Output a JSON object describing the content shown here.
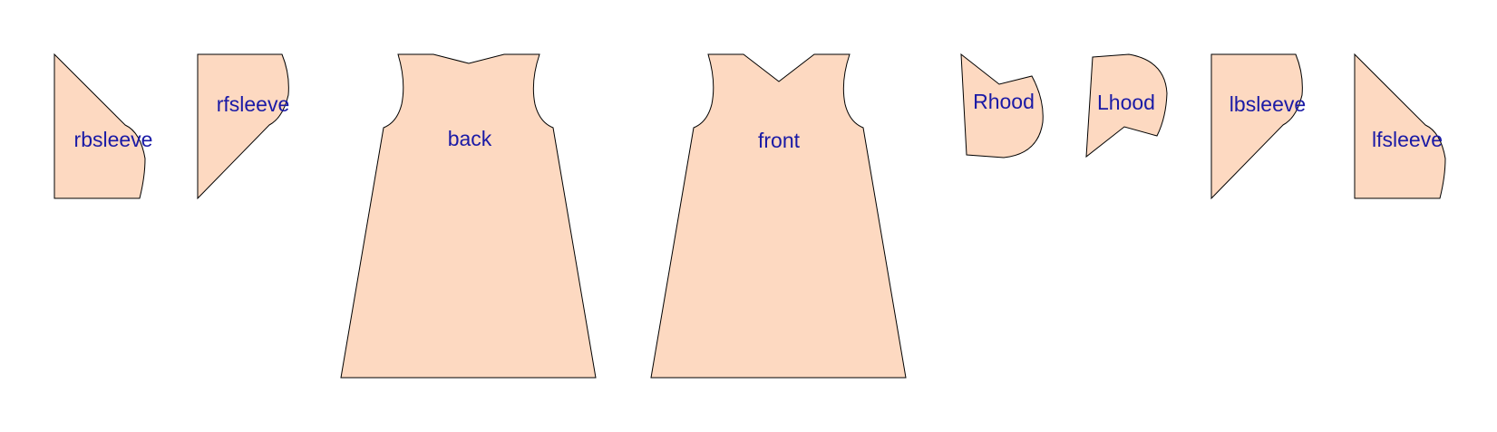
{
  "diagram": {
    "fill_color": "#fdd9c1",
    "stroke_color": "#000000",
    "label_color": "#1a1aa6",
    "pieces": [
      {
        "id": "rbsleeve",
        "label": "rbsleeve"
      },
      {
        "id": "rfsleeve",
        "label": "rfsleeve"
      },
      {
        "id": "back",
        "label": "back"
      },
      {
        "id": "front",
        "label": "front"
      },
      {
        "id": "rhood",
        "label": "Rhood"
      },
      {
        "id": "lhood",
        "label": "Lhood"
      },
      {
        "id": "lbsleeve",
        "label": "lbsleeve"
      },
      {
        "id": "lfsleeve",
        "label": "lfsleeve"
      }
    ]
  }
}
